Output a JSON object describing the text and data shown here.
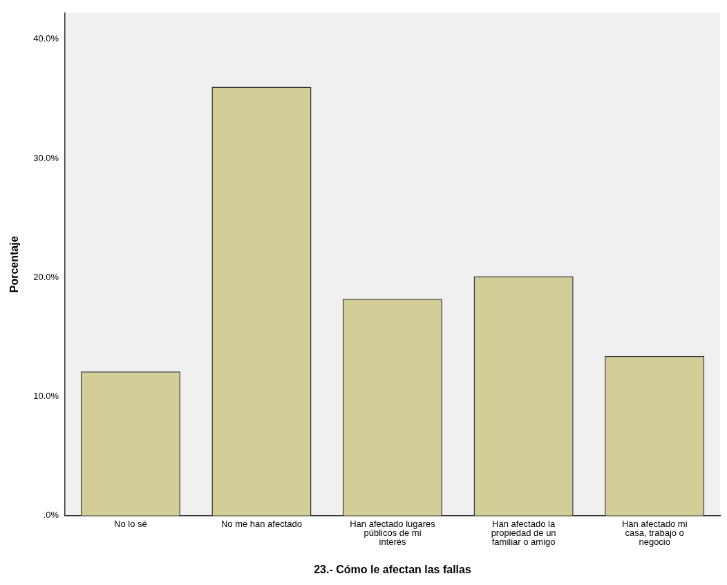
{
  "chart_data": {
    "type": "bar",
    "xlabel": "23.- Cómo le afectan las fallas",
    "ylabel": "Porcentaje",
    "categories": [
      "No lo sé",
      "No me han afectado",
      "Han afectado lugares públicos de mi interés",
      "Han afectado la propiedad de un familiar o amigo",
      "Han afectado mi casa, trabajo o negocio"
    ],
    "values": [
      12.1,
      36.0,
      18.2,
      20.1,
      13.4
    ],
    "color": "#d3ce97",
    "ylim": [
      0,
      42.2
    ],
    "yticks": [
      {
        "value": 0,
        "label": ".0%"
      },
      {
        "value": 10,
        "label": "10.0%"
      },
      {
        "value": 20,
        "label": "20.0%"
      },
      {
        "value": 30,
        "label": "30.0%"
      },
      {
        "value": 40,
        "label": "40.0%"
      }
    ],
    "grid": false,
    "legend": false
  }
}
